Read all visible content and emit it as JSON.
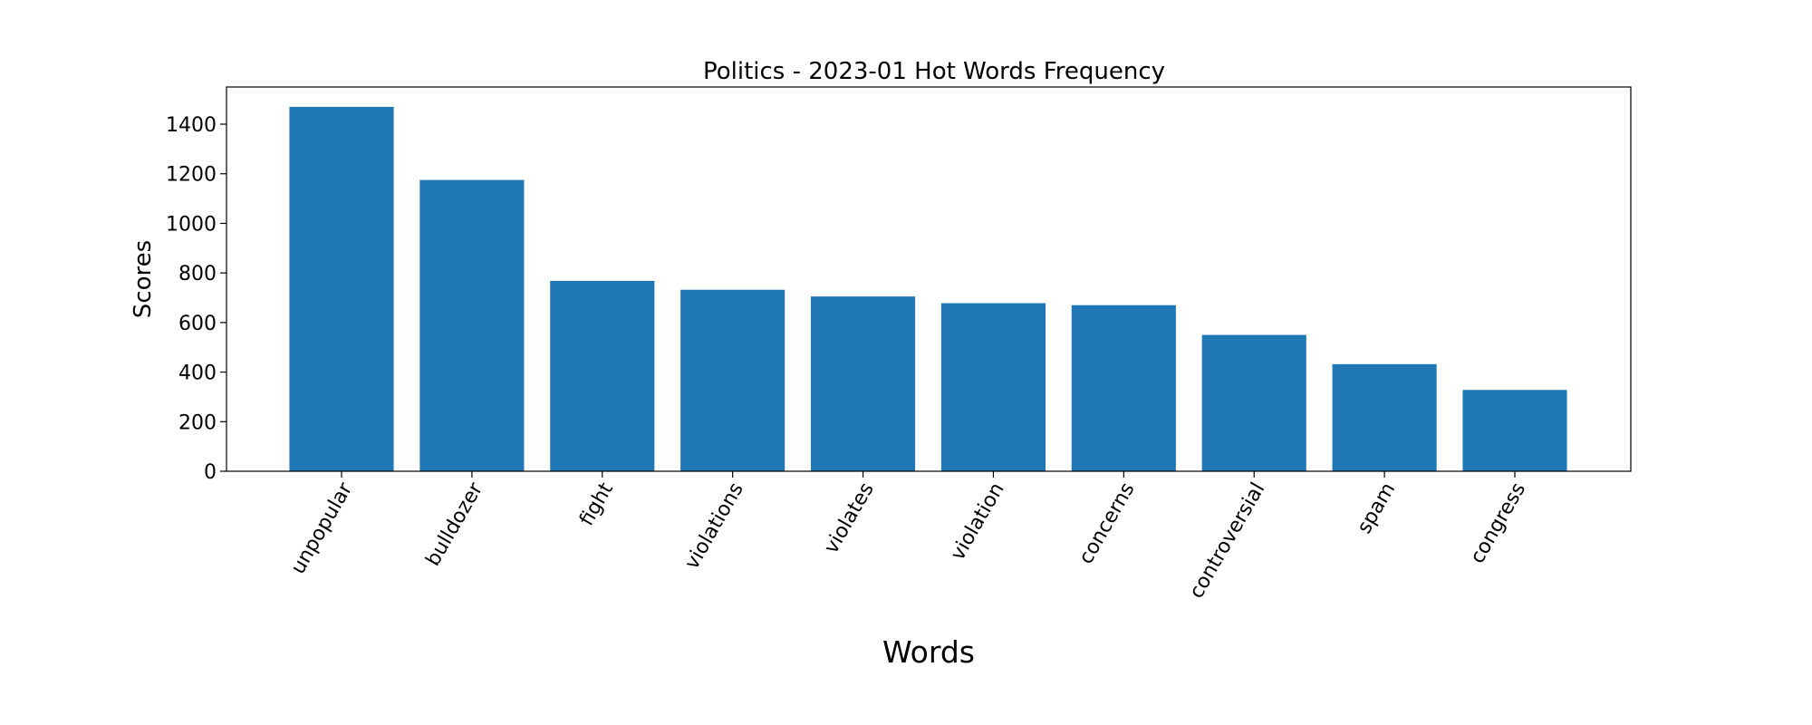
{
  "chart_data": {
    "type": "bar",
    "title": "Politics - 2023-01 Hot Words Frequency",
    "xlabel": "Words",
    "ylabel": "Scores",
    "categories": [
      "unpopular",
      "bulldozer",
      "fight",
      "violations",
      "violates",
      "violation",
      "concerns",
      "controversial",
      "spam",
      "congress"
    ],
    "values": [
      1470,
      1175,
      768,
      732,
      705,
      678,
      670,
      550,
      432,
      328
    ],
    "ylim": [
      0,
      1550
    ],
    "yticks": [
      0,
      200,
      400,
      600,
      800,
      1000,
      1200,
      1400
    ],
    "bar_color": "#1f77b4",
    "grid": false,
    "legend": "none"
  }
}
